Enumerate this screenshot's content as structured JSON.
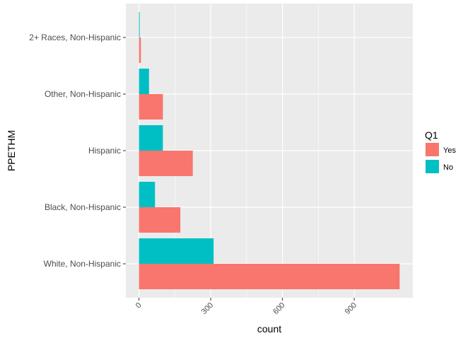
{
  "chart_data": {
    "type": "bar",
    "orientation": "horizontal",
    "position": "dodge",
    "xlabel": "count",
    "ylabel": "PPETHM",
    "categories": [
      "2+ Races, Non-Hispanic",
      "Other, Non-Hispanic",
      "Hispanic",
      "Black, Non-Hispanic",
      "White, Non-Hispanic"
    ],
    "series": [
      {
        "name": "Yes",
        "color": "#F8766D",
        "values": [
          8,
          100,
          225,
          173,
          1090
        ]
      },
      {
        "name": "No",
        "color": "#00BFC4",
        "values": [
          3,
          42,
          100,
          67,
          312
        ]
      }
    ],
    "xlim": [
      -55,
      1145
    ],
    "xticks": [
      0,
      300,
      600,
      900
    ],
    "xtick_labels": [
      "0",
      "300",
      "600",
      "900"
    ],
    "xtick_rotation": -45,
    "grid": true,
    "panel_background": "#EBEBEB",
    "legend": {
      "title": "Q1",
      "placement": "right",
      "entries": [
        "Yes",
        "No"
      ]
    }
  }
}
